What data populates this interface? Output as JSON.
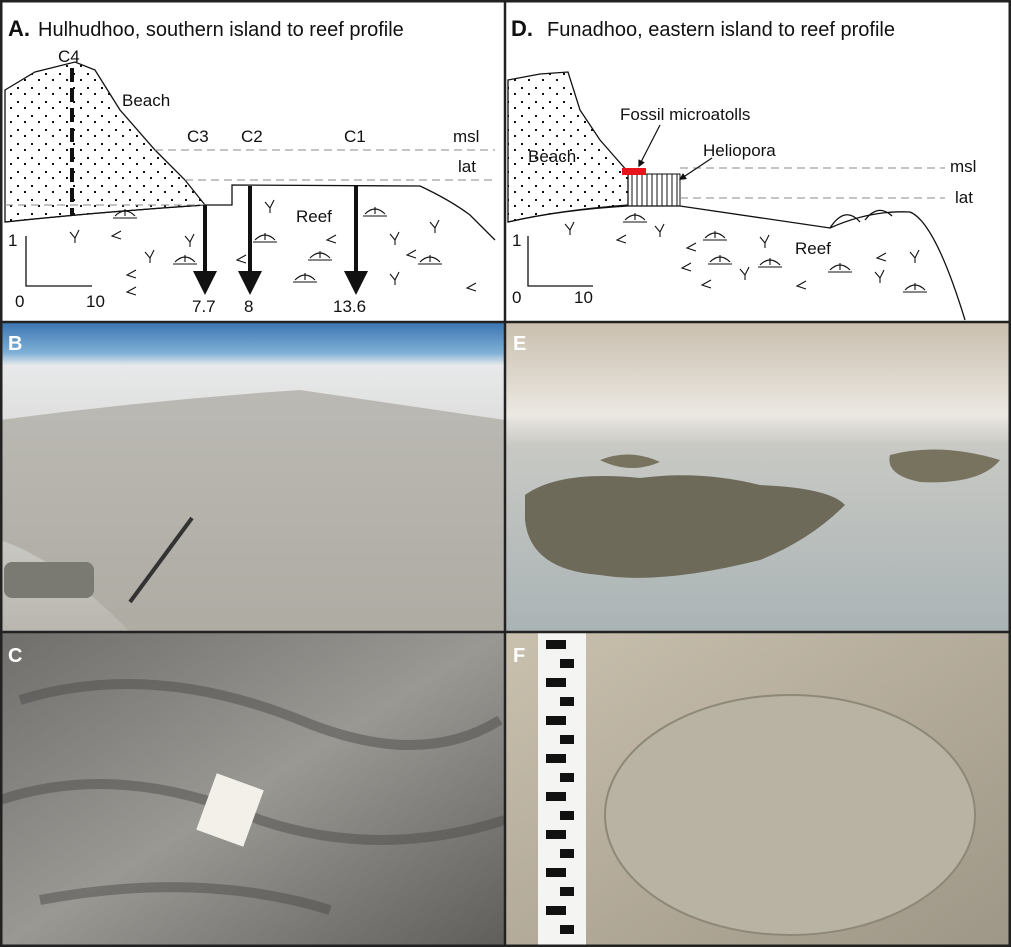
{
  "panel_a": {
    "label": "A.",
    "title": "Hulhudhoo, southern island to reef profile",
    "beach": "Beach",
    "reef": "Reef",
    "msl": "msl",
    "lat": "lat",
    "cores": [
      {
        "name": "C4"
      },
      {
        "name": "C3",
        "depth": 7.7
      },
      {
        "name": "C2",
        "depth": 8
      },
      {
        "name": "C1",
        "depth": 13.6
      }
    ],
    "scale": {
      "vertical": 1,
      "origin": 0,
      "horizontal": 10
    }
  },
  "panel_d": {
    "label": "D.",
    "title": "Funadhoo, eastern island to reef  profile",
    "beach": "Beach",
    "reef": "Reef",
    "msl": "msl",
    "lat": "lat",
    "fossil": "Fossil microatolls",
    "heliopora": "Heliopora",
    "scale": {
      "vertical": 1,
      "origin": 0,
      "horizontal": 10
    }
  },
  "photos": [
    {
      "label": "B"
    },
    {
      "label": "E"
    },
    {
      "label": "C"
    },
    {
      "label": "F"
    }
  ]
}
